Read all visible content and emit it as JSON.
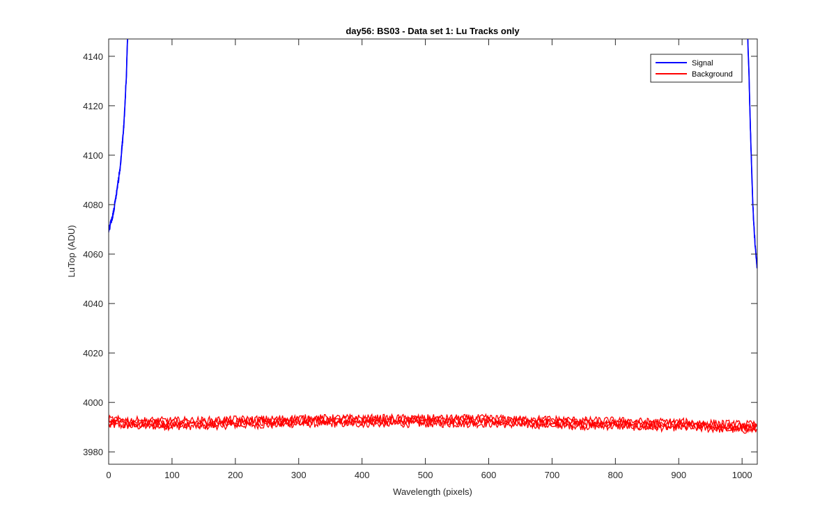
{
  "chart_data": {
    "type": "line",
    "title": "day56: BS03 - Data set 1: Lu Tracks only",
    "xlabel": "Wavelength (pixels)",
    "ylabel": "LuTop (ADU)",
    "xlim": [
      0,
      1024
    ],
    "ylim": [
      3975,
      4147
    ],
    "xticks": [
      "0",
      "100",
      "200",
      "300",
      "400",
      "500",
      "600",
      "700",
      "800",
      "900",
      "1000"
    ],
    "yticks": [
      "3980",
      "4000",
      "4020",
      "4040",
      "4060",
      "4080",
      "4100",
      "4120",
      "4140"
    ],
    "grid": false,
    "legend_position": "top-right",
    "series": [
      {
        "name": "Signal",
        "color": "#0000ff",
        "segments": [
          {
            "x": [
              0,
              3,
              6,
              9,
              12,
              15,
              18,
              21,
              24,
              26,
              28,
              29,
              30
            ],
            "y": [
              4070,
              4072,
              4075,
              4079,
              4084,
              4089,
              4095,
              4103,
              4112,
              4122,
              4133,
              4142,
              4147
            ]
          },
          {
            "x": [
              1009,
              1011,
              1013,
              1015,
              1017,
              1019,
              1021,
              1023,
              1024
            ],
            "y": [
              4147,
              4132,
              4112,
              4095,
              4080,
              4070,
              4062,
              4057,
              4054
            ]
          }
        ]
      },
      {
        "name": "Background",
        "color": "#ff0000",
        "x": [
          0,
          50,
          100,
          150,
          200,
          250,
          300,
          350,
          400,
          450,
          500,
          550,
          600,
          650,
          700,
          750,
          800,
          850,
          900,
          950,
          1000,
          1024
        ],
        "y": [
          3992,
          3991.5,
          3991.5,
          3991.5,
          3992,
          3992,
          3992.5,
          3992.5,
          3992.5,
          3992.5,
          3992.5,
          3992.5,
          3992.5,
          3992,
          3992,
          3991.5,
          3991.5,
          3991,
          3991,
          3990.5,
          3990,
          3990
        ],
        "noise_amplitude": 3
      }
    ]
  }
}
